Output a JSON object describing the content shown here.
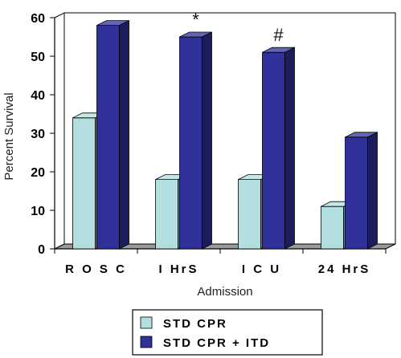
{
  "chart_data": {
    "type": "bar",
    "title": "",
    "xlabel": "Admission",
    "ylabel": "Percent Survival",
    "ylim": [
      0,
      60
    ],
    "yticks": [
      "0",
      "10",
      "20",
      "30",
      "40",
      "50",
      "60"
    ],
    "categories": [
      "R O S C",
      "I HrS",
      "I C U",
      "24 HrS"
    ],
    "series": [
      {
        "name": "STD CPR",
        "values": [
          34,
          18,
          18,
          11
        ],
        "color": "#b3dfe0"
      },
      {
        "name": "STD CPR + ITD",
        "values": [
          58,
          55,
          51,
          29
        ],
        "color": "#30309a"
      }
    ],
    "annotations": [
      {
        "text": "*",
        "category": "I HrS"
      },
      {
        "text": "#",
        "category": "I C U"
      }
    ],
    "legend": [
      "STD CPR",
      "STD CPR + ITD"
    ],
    "legend_position": "bottom-center",
    "grid": false
  }
}
